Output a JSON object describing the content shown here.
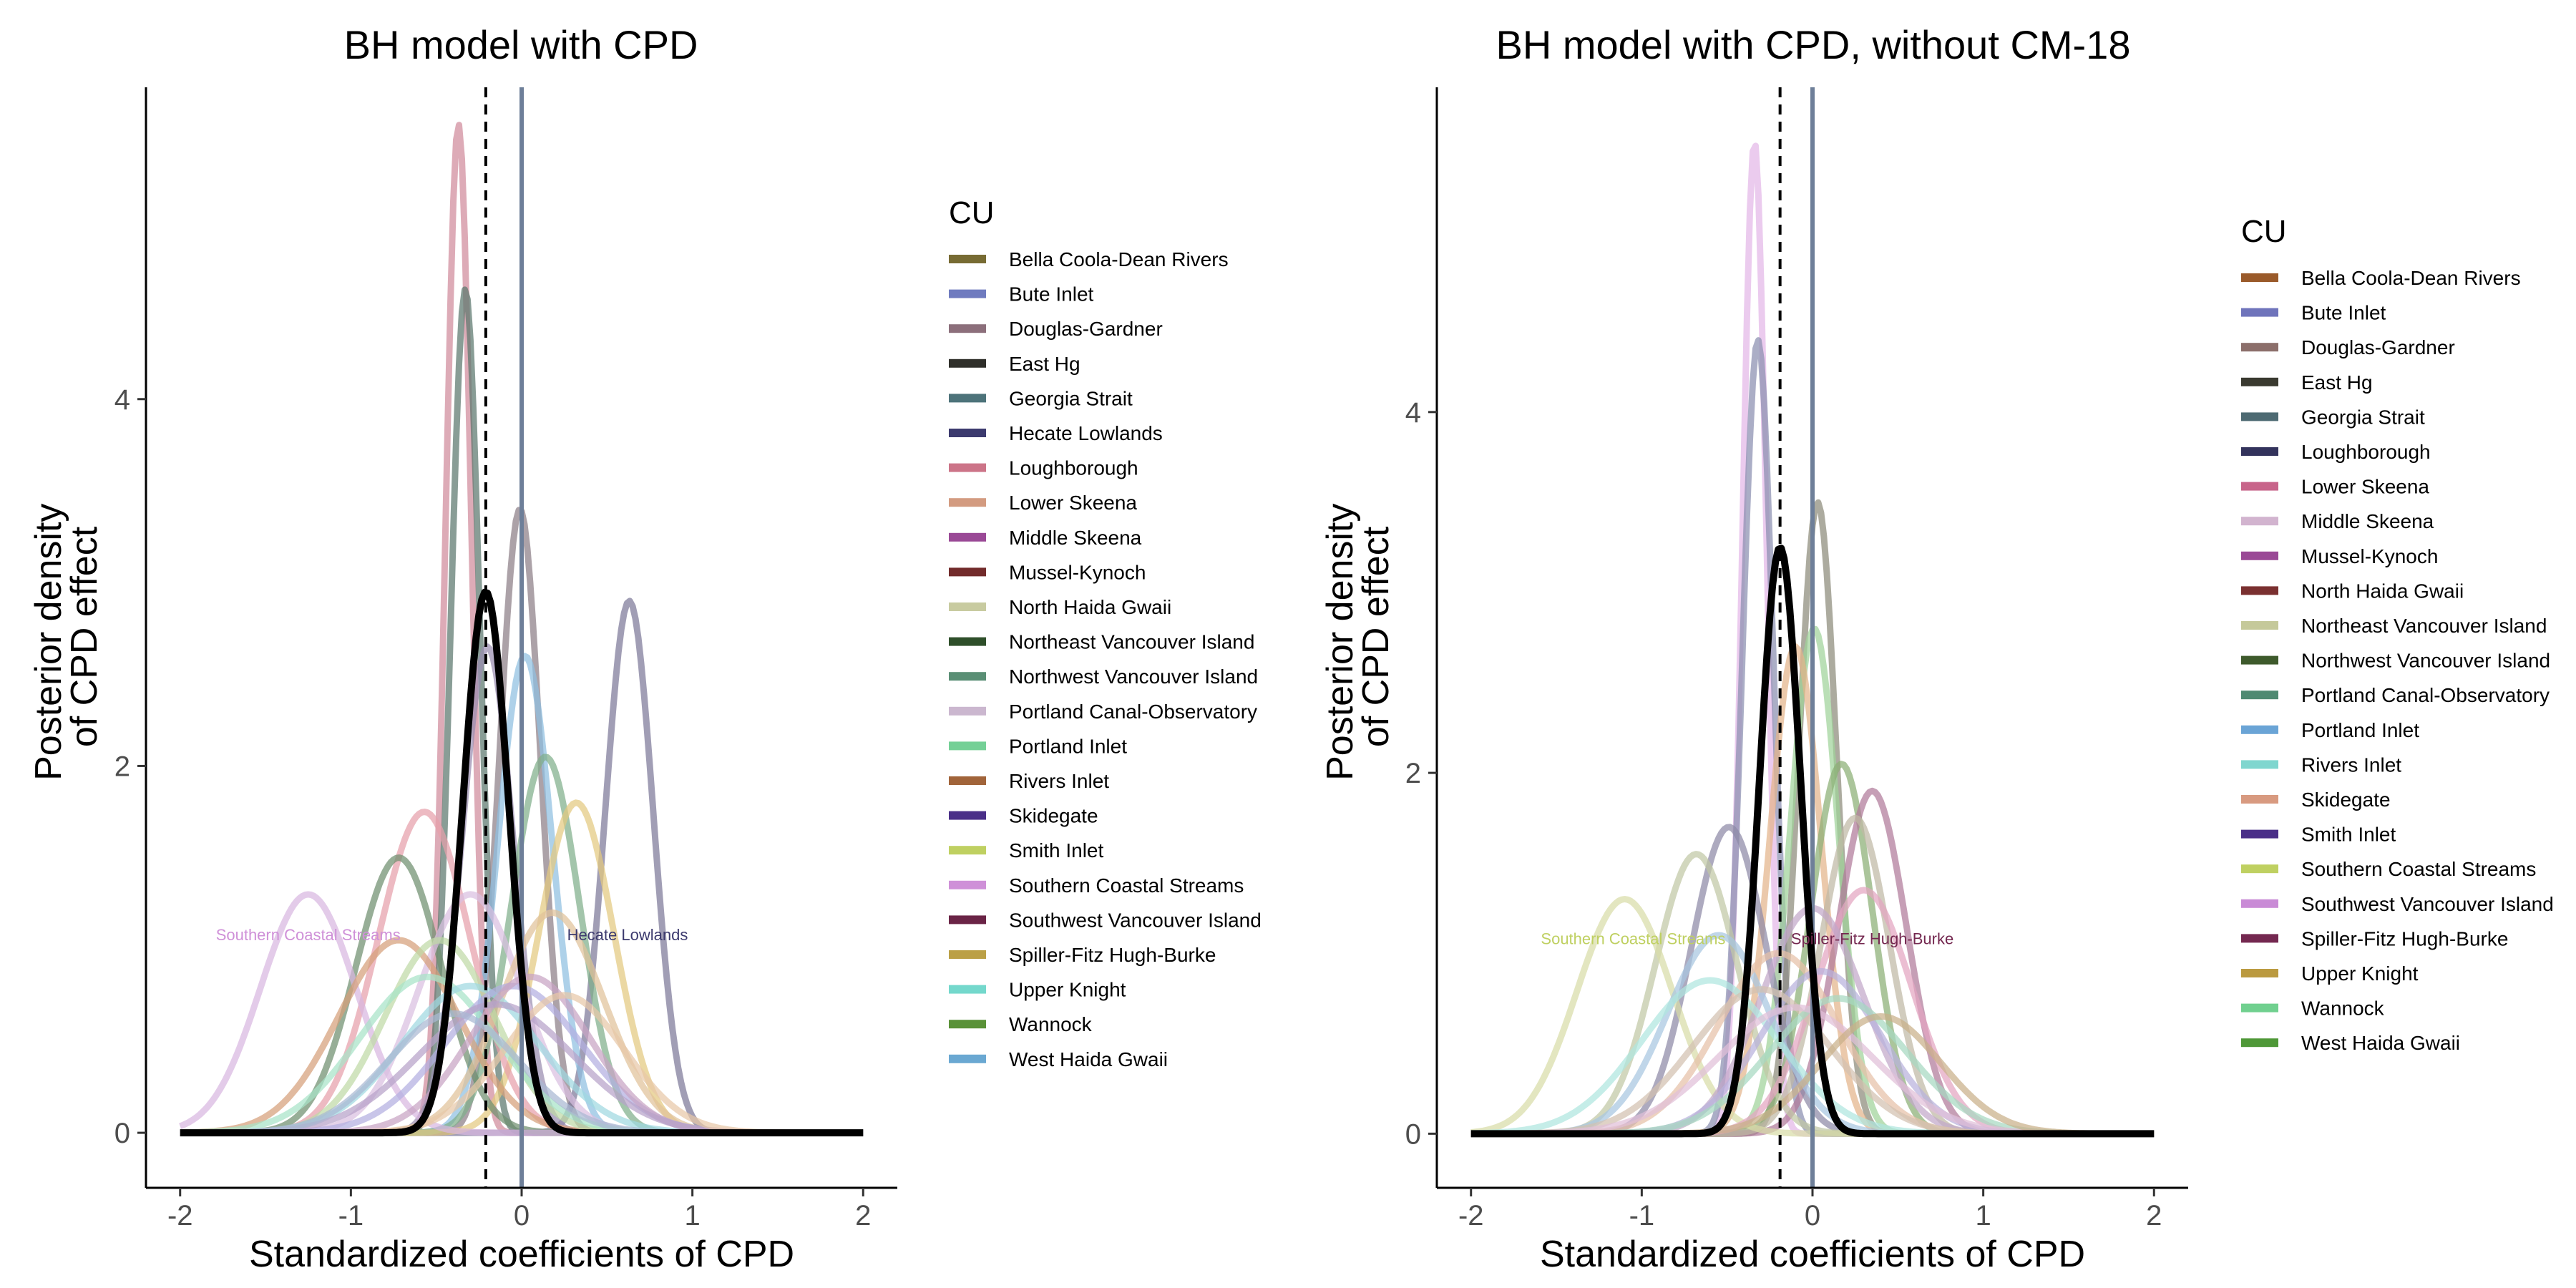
{
  "chart_data": [
    {
      "type": "area",
      "title": "BH model with CPD",
      "xlabel": "Standardized coefficients of CPD",
      "ylabel_lines": [
        "Posterior density",
        "of CPD effect"
      ],
      "xlim": [
        -2.2,
        2.2
      ],
      "ylim": [
        -0.3,
        5.7
      ],
      "x_ticks": [
        -2,
        -1,
        0,
        1,
        2
      ],
      "x_tick_labels": [
        "-2",
        "-1",
        "0",
        "1",
        "2"
      ],
      "y_ticks": [
        0,
        2,
        4
      ],
      "y_tick_labels": [
        "0",
        "2",
        "4"
      ],
      "grid": false,
      "legend_title": "CU",
      "legend_position": "right",
      "legend_items": [
        {
          "name": "Bella Coola-Dean Rivers",
          "color": "#776b33"
        },
        {
          "name": "Bute Inlet",
          "color": "#6f7bbf"
        },
        {
          "name": "Douglas-Gardner",
          "color": "#8c6f7b"
        },
        {
          "name": "East Hg",
          "color": "#2f2f2a"
        },
        {
          "name": "Georgia Strait",
          "color": "#4d737a"
        },
        {
          "name": "Hecate Lowlands",
          "color": "#3c3a6e"
        },
        {
          "name": "Loughborough",
          "color": "#cc7488"
        },
        {
          "name": "Lower Skeena",
          "color": "#d39b80"
        },
        {
          "name": "Middle Skeena",
          "color": "#9a4996"
        },
        {
          "name": "Mussel-Kynoch",
          "color": "#722b2b"
        },
        {
          "name": "North Haida Gwaii",
          "color": "#c8cba0"
        },
        {
          "name": "Northeast Vancouver Island",
          "color": "#2e4f2a"
        },
        {
          "name": "Northwest Vancouver Island",
          "color": "#5a8f75"
        },
        {
          "name": "Portland Canal-Observatory",
          "color": "#cbb7cf"
        },
        {
          "name": "Portland Inlet",
          "color": "#74d096"
        },
        {
          "name": "Rivers Inlet",
          "color": "#a1643a"
        },
        {
          "name": "Skidegate",
          "color": "#4a2f88"
        },
        {
          "name": "Smith Inlet",
          "color": "#bfd061"
        },
        {
          "name": "Southern Coastal Streams",
          "color": "#cf90d8"
        },
        {
          "name": "Southwest Vancouver Island",
          "color": "#6a2446"
        },
        {
          "name": "Spiller-Fitz Hugh-Burke",
          "color": "#bba046"
        },
        {
          "name": "Upper Knight",
          "color": "#74d8cc"
        },
        {
          "name": "Wannock",
          "color": "#5a9238"
        },
        {
          "name": "West Haida Gwaii",
          "color": "#6aa8d2"
        }
      ],
      "series": [
        {
          "color": "#d08a9b",
          "mean": -0.37,
          "sd": 0.075,
          "peak": 5.5
        },
        {
          "color": "#5c776e",
          "mean": -0.33,
          "sd": 0.085,
          "peak": 4.6
        },
        {
          "color": "#8c7e86",
          "mean": -0.01,
          "sd": 0.12,
          "peak": 3.4
        },
        {
          "color": "#7d7898",
          "mean": 0.63,
          "sd": 0.14,
          "peak": 2.9
        },
        {
          "color": "#9a8eb0",
          "mean": -0.2,
          "sd": 0.15,
          "peak": 2.65
        },
        {
          "color": "#8fbfe0",
          "mean": 0.02,
          "sd": 0.16,
          "peak": 2.6
        },
        {
          "color": "#7fae8a",
          "mean": 0.14,
          "sd": 0.2,
          "peak": 2.05
        },
        {
          "color": "#e3c980",
          "mean": 0.32,
          "sd": 0.22,
          "peak": 1.8
        },
        {
          "color": "#e6a0aa",
          "mean": -0.57,
          "sd": 0.27,
          "peak": 1.75
        },
        {
          "color": "#6f8f6f",
          "mean": -0.72,
          "sd": 0.25,
          "peak": 1.5
        },
        {
          "color": "#d8b7e0",
          "mean": -1.25,
          "sd": 0.28,
          "peak": 1.3
        },
        {
          "color": "#d9bfe0",
          "mean": -0.3,
          "sd": 0.3,
          "peak": 1.3
        },
        {
          "color": "#e0c29a",
          "mean": 0.18,
          "sd": 0.3,
          "peak": 1.2
        },
        {
          "color": "#d6a07a",
          "mean": -0.72,
          "sd": 0.35,
          "peak": 1.05
        },
        {
          "color": "#bfd9a6",
          "mean": -0.48,
          "sd": 0.32,
          "peak": 1.05
        },
        {
          "color": "#a8e3c8",
          "mean": -0.55,
          "sd": 0.4,
          "peak": 0.85
        },
        {
          "color": "#9fd8e0",
          "mean": -0.3,
          "sd": 0.4,
          "peak": 0.8
        },
        {
          "color": "#b3aee0",
          "mean": -0.05,
          "sd": 0.4,
          "peak": 0.8
        },
        {
          "color": "#c7a3c3",
          "mean": 0.05,
          "sd": 0.35,
          "peak": 0.85
        },
        {
          "color": "#b7a2c9",
          "mean": -0.15,
          "sd": 0.45,
          "peak": 0.7
        },
        {
          "color": "#e8c7a8",
          "mean": 0.25,
          "sd": 0.35,
          "peak": 0.75
        },
        {
          "color": "#a9b9d3",
          "mean": -0.4,
          "sd": 0.38,
          "peak": 0.65
        }
      ],
      "mean_density": {
        "color": "#000000",
        "mean": -0.21,
        "sd": 0.135,
        "peak": 2.95
      },
      "dashed_line_x": -0.21,
      "zero_line_x": 0,
      "annotations": [
        {
          "text": "Southern Coastal Streams",
          "x": -1.25,
          "y": 1.05,
          "color": "#cf90d8"
        },
        {
          "text": "Hecate Lowlands",
          "x": 0.62,
          "y": 1.05,
          "color": "#3c3a6e"
        }
      ]
    },
    {
      "type": "area",
      "title": "BH model with CPD, without CM-18",
      "xlabel": "Standardized coefficients of CPD",
      "ylabel_lines": [
        "Posterior density",
        "of CPD effect"
      ],
      "xlim": [
        -2.2,
        2.2
      ],
      "ylim": [
        -0.3,
        5.8
      ],
      "x_ticks": [
        -2,
        -1,
        0,
        1,
        2
      ],
      "x_tick_labels": [
        "-2",
        "-1",
        "0",
        "1",
        "2"
      ],
      "y_ticks": [
        0,
        2,
        4
      ],
      "y_tick_labels": [
        "0",
        "2",
        "4"
      ],
      "grid": false,
      "legend_title": "CU",
      "legend_position": "right",
      "legend_items": [
        {
          "name": "Bella Coola-Dean Rivers",
          "color": "#9a5a2a"
        },
        {
          "name": "Bute Inlet",
          "color": "#6f74bb"
        },
        {
          "name": "Douglas-Gardner",
          "color": "#8c6f6b"
        },
        {
          "name": "East Hg",
          "color": "#3a3a30"
        },
        {
          "name": "Georgia Strait",
          "color": "#4d6a72"
        },
        {
          "name": "Loughborough",
          "color": "#33335c"
        },
        {
          "name": "Lower Skeena",
          "color": "#c8648a"
        },
        {
          "name": "Middle Skeena",
          "color": "#d2b4cf"
        },
        {
          "name": "Mussel-Kynoch",
          "color": "#9a4996"
        },
        {
          "name": "North Haida Gwaii",
          "color": "#7a3030"
        },
        {
          "name": "Northeast Vancouver Island",
          "color": "#c5c99a"
        },
        {
          "name": "Northwest Vancouver Island",
          "color": "#3e5a2c"
        },
        {
          "name": "Portland Canal-Observatory",
          "color": "#4f8a72"
        },
        {
          "name": "Portland Inlet",
          "color": "#6aa4d6"
        },
        {
          "name": "Rivers Inlet",
          "color": "#7fd6cf"
        },
        {
          "name": "Skidegate",
          "color": "#d89a80"
        },
        {
          "name": "Smith Inlet",
          "color": "#4a2f88"
        },
        {
          "name": "Southern Coastal Streams",
          "color": "#bfd061"
        },
        {
          "name": "Southwest Vancouver Island",
          "color": "#c98bd6"
        },
        {
          "name": "Spiller-Fitz Hugh-Burke",
          "color": "#742850"
        },
        {
          "name": "Upper Knight",
          "color": "#bb9a40"
        },
        {
          "name": "Wannock",
          "color": "#70d08f"
        },
        {
          "name": "West Haida Gwaii",
          "color": "#4f9838"
        }
      ],
      "series": [
        {
          "color": "#e3b7e8",
          "mean": -0.34,
          "sd": 0.07,
          "peak": 5.5
        },
        {
          "color": "#8a8fb0",
          "mean": -0.32,
          "sd": 0.09,
          "peak": 4.4
        },
        {
          "color": "#8c8a7a",
          "mean": 0.03,
          "sd": 0.11,
          "peak": 3.5
        },
        {
          "color": "#9fd29a",
          "mean": 0.01,
          "sd": 0.14,
          "peak": 2.8
        },
        {
          "color": "#e3b48a",
          "mean": -0.1,
          "sd": 0.15,
          "peak": 2.7
        },
        {
          "color": "#8aae74",
          "mean": 0.17,
          "sd": 0.18,
          "peak": 2.05
        },
        {
          "color": "#b07a9a",
          "mean": 0.35,
          "sd": 0.2,
          "peak": 1.9
        },
        {
          "color": "#bfb8a5",
          "mean": 0.25,
          "sd": 0.2,
          "peak": 1.75
        },
        {
          "color": "#8d89a6",
          "mean": -0.49,
          "sd": 0.22,
          "peak": 1.7
        },
        {
          "color": "#c0c8a5",
          "mean": -0.68,
          "sd": 0.24,
          "peak": 1.55
        },
        {
          "color": "#d8dca8",
          "mean": -1.1,
          "sd": 0.28,
          "peak": 1.3
        },
        {
          "color": "#e3a5c0",
          "mean": 0.3,
          "sd": 0.28,
          "peak": 1.35
        },
        {
          "color": "#c2a8c9",
          "mean": 0.0,
          "sd": 0.3,
          "peak": 1.25
        },
        {
          "color": "#a8c6e0",
          "mean": -0.55,
          "sd": 0.3,
          "peak": 1.1
        },
        {
          "color": "#e6c0a8",
          "mean": -0.2,
          "sd": 0.35,
          "peak": 1.0
        },
        {
          "color": "#aee6df",
          "mean": -0.6,
          "sd": 0.4,
          "peak": 0.85
        },
        {
          "color": "#b8b2dc",
          "mean": 0.05,
          "sd": 0.35,
          "peak": 0.9
        },
        {
          "color": "#d2c0b0",
          "mean": -0.3,
          "sd": 0.4,
          "peak": 0.8
        },
        {
          "color": "#a6d8c0",
          "mean": 0.15,
          "sd": 0.4,
          "peak": 0.75
        },
        {
          "color": "#e0bfd8",
          "mean": -0.1,
          "sd": 0.45,
          "peak": 0.7
        },
        {
          "color": "#c9b089",
          "mean": 0.4,
          "sd": 0.35,
          "peak": 0.65
        }
      ],
      "mean_density": {
        "color": "#000000",
        "mean": -0.19,
        "sd": 0.12,
        "peak": 3.25
      },
      "dashed_line_x": -0.19,
      "zero_line_x": 0,
      "annotations": [
        {
          "text": "Southern Coastal Streams",
          "x": -1.05,
          "y": 1.05,
          "color": "#bfd061"
        },
        {
          "text": "Spiller-Fitz Hugh-Burke",
          "x": 0.35,
          "y": 1.05,
          "color": "#742850"
        }
      ]
    }
  ]
}
